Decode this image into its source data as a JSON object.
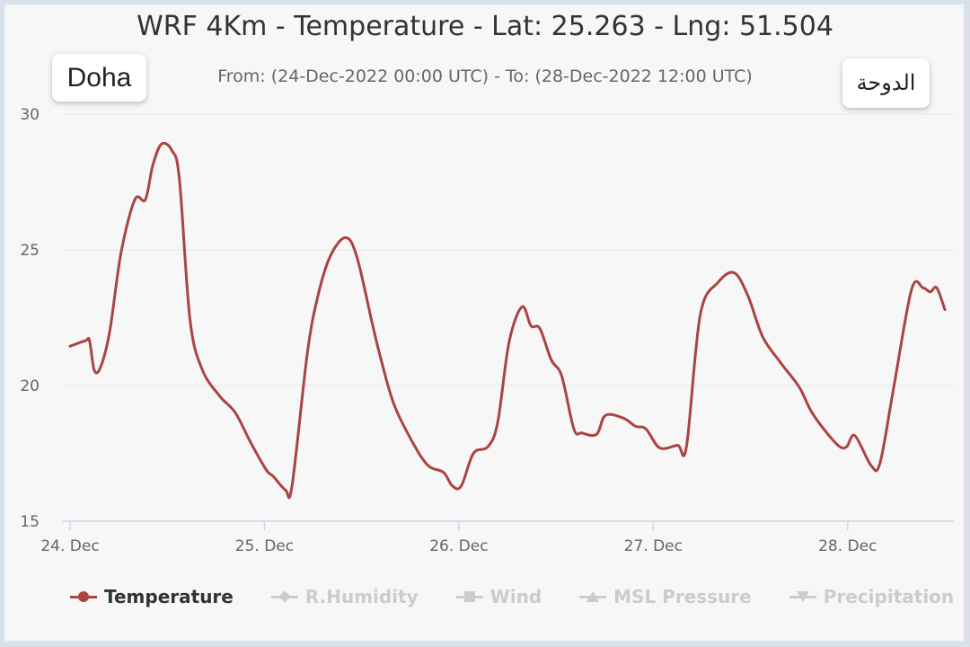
{
  "header": {
    "title": "WRF 4Km - Temperature - Lat: 25.263 - Lng: 51.504",
    "subtitle": "From: (24-Dec-2022 00:00 UTC) - To: (28-Dec-2022 12:00 UTC)",
    "city_en": "Doha",
    "city_ar": "الدوحة"
  },
  "legend": [
    {
      "label": "Temperature",
      "active": true,
      "symbol": "circle"
    },
    {
      "label": "R.Humidity",
      "active": false,
      "symbol": "diamond"
    },
    {
      "label": "Wind",
      "active": false,
      "symbol": "square"
    },
    {
      "label": "MSL Pressure",
      "active": false,
      "symbol": "triangle"
    },
    {
      "label": "Precipitation",
      "active": false,
      "symbol": "triangle-down"
    }
  ],
  "colors": {
    "series": "#a94442",
    "grid": "#e6e6e6",
    "axis": "#ccd6eb"
  },
  "chart_data": {
    "type": "line",
    "title": "WRF 4Km - Temperature - Lat: 25.263 - Lng: 51.504",
    "xlabel": "",
    "ylabel": "",
    "x_unit": "hours since 24-Dec-2022 00:00 UTC",
    "xlim": [
      0,
      108
    ],
    "ylim": [
      15,
      30
    ],
    "yticks": [
      "15",
      "20",
      "25",
      "30"
    ],
    "xticks": [
      {
        "h": 0,
        "label": "24. Dec"
      },
      {
        "h": 24,
        "label": "25. Dec"
      },
      {
        "h": 48,
        "label": "26. Dec"
      },
      {
        "h": 72,
        "label": "27. Dec"
      },
      {
        "h": 96,
        "label": "28. Dec"
      }
    ],
    "grid": true,
    "legend_position": "bottom",
    "series": [
      {
        "name": "Temperature",
        "x": [
          0,
          1.9,
          2.4,
          3,
          3.8,
          4.9,
          6.3,
          8,
          9.3,
          10.2,
          11.3,
          12.6,
          13.5,
          14.8,
          16.3,
          18.5,
          20.4,
          22.3,
          24.2,
          25.1,
          26.6,
          27.4,
          29.3,
          30.6,
          32.1,
          34,
          35.4,
          37.3,
          38.4,
          40,
          42.3,
          44.2,
          46.1,
          47.2,
          48.3,
          49.8,
          51.6,
          52.8,
          54.2,
          55.8,
          56.9,
          58,
          59.4,
          60.7,
          62.2,
          63.2,
          65,
          66.1,
          68.3,
          69.8,
          71.1,
          72.8,
          75,
          76.1,
          77.8,
          80,
          82,
          83.7,
          85.5,
          87.7,
          90,
          91.5,
          93.3,
          95,
          95.9,
          96.9,
          98.9,
          100,
          101.7,
          103.9,
          105.3,
          106.2,
          107,
          108
        ],
        "values": [
          21.45,
          21.65,
          21.65,
          20.55,
          20.7,
          22.0,
          24.9,
          26.85,
          26.85,
          28.1,
          28.9,
          28.65,
          27.6,
          22.45,
          20.6,
          19.6,
          19.0,
          17.9,
          16.9,
          16.65,
          16.15,
          16.3,
          21.2,
          23.3,
          24.75,
          25.45,
          24.75,
          22.3,
          20.95,
          19.3,
          17.9,
          17.05,
          16.8,
          16.3,
          16.3,
          17.5,
          17.75,
          18.65,
          21.6,
          22.9,
          22.2,
          22.1,
          20.95,
          20.35,
          18.4,
          18.25,
          18.2,
          18.9,
          18.8,
          18.5,
          18.4,
          17.7,
          17.8,
          17.75,
          22.6,
          23.8,
          24.15,
          23.3,
          21.8,
          20.85,
          19.95,
          19.05,
          18.3,
          17.75,
          17.75,
          18.15,
          17.05,
          17.15,
          19.95,
          23.55,
          23.6,
          23.45,
          23.6,
          22.8
        ]
      }
    ]
  }
}
